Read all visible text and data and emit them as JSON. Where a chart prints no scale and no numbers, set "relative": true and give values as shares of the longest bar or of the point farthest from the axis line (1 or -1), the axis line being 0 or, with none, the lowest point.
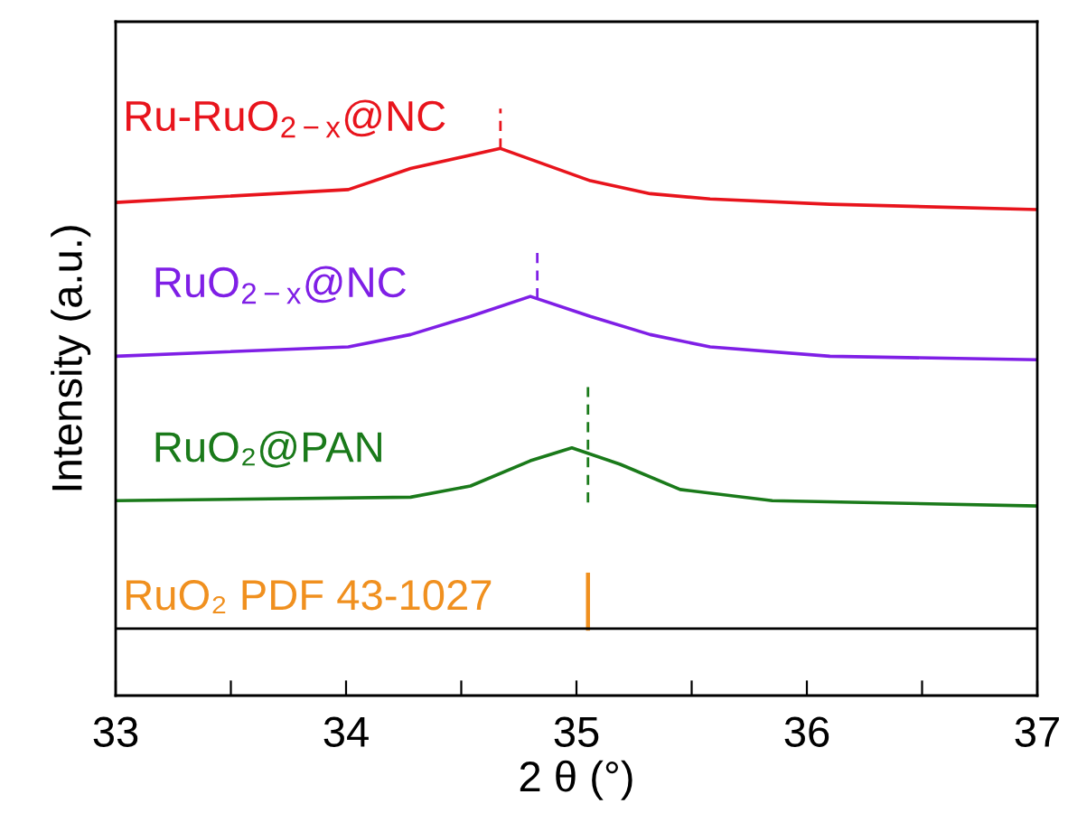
{
  "chart_data": {
    "type": "line",
    "relative": true,
    "xlabel": "2 θ (°)",
    "ylabel": "Intensity (a.u.)",
    "xlim": [
      33,
      37
    ],
    "xticks": [
      33,
      {
        "value": 33.5,
        "label": null
      },
      34,
      {
        "value": 34.5,
        "label": null
      },
      35,
      {
        "value": 35.5,
        "label": null
      },
      36,
      {
        "value": 36.5,
        "label": null
      },
      37
    ],
    "grid": false,
    "legend": false,
    "marker": "none",
    "line_style": "solid",
    "series": [
      {
        "name": "Ru-RuO$_{2−x}$@NC",
        "color": "#e8141c",
        "x": [
          33,
          34.01,
          34.28,
          34.67,
          35.06,
          35.32,
          35.58,
          36.1,
          37
        ],
        "values": [
          0.84,
          0.862,
          0.898,
          0.932,
          0.877,
          0.855,
          0.846,
          0.837,
          0.828
        ]
      },
      {
        "name": "RuO$_{2−x}$@NC",
        "color": "#7f1fe6",
        "x": [
          33,
          34.01,
          34.28,
          34.54,
          34.8,
          35.06,
          35.32,
          35.58,
          36.1,
          37
        ],
        "values": [
          0.578,
          0.594,
          0.615,
          0.646,
          0.68,
          0.646,
          0.615,
          0.594,
          0.578,
          0.572
        ]
      },
      {
        "name": "RuO₂@PAN",
        "color": "#1a7a1a",
        "x": [
          33,
          34.28,
          34.54,
          34.8,
          34.98,
          35.19,
          35.45,
          35.85,
          37
        ],
        "values": [
          0.332,
          0.338,
          0.357,
          0.4,
          0.422,
          0.394,
          0.351,
          0.332,
          0.323
        ]
      },
      {
        "name": "RuO₂ PDF 43-1027",
        "color": "#f0901f",
        "x": [
          35.05,
          35.05
        ],
        "values": [
          0.114,
          0.206
        ]
      },
      {
        "color": "#e8141c",
        "line_style": "dashed",
        "x": [
          34.67,
          34.67
        ],
        "values": [
          0.932,
          1.0
        ]
      },
      {
        "color": "#7f1fe6",
        "line_style": "dashed",
        "x": [
          34.83,
          34.83
        ],
        "values": [
          0.677,
          0.763
        ]
      },
      {
        "color": "#1a7a1a",
        "line_style": "dashed",
        "x": [
          35.05,
          35.05
        ],
        "values": [
          0.329,
          0.532
        ]
      }
    ],
    "ref_lines": [
      {
        "axis": "y",
        "value": 0.114,
        "color": "#000000"
      }
    ]
  }
}
